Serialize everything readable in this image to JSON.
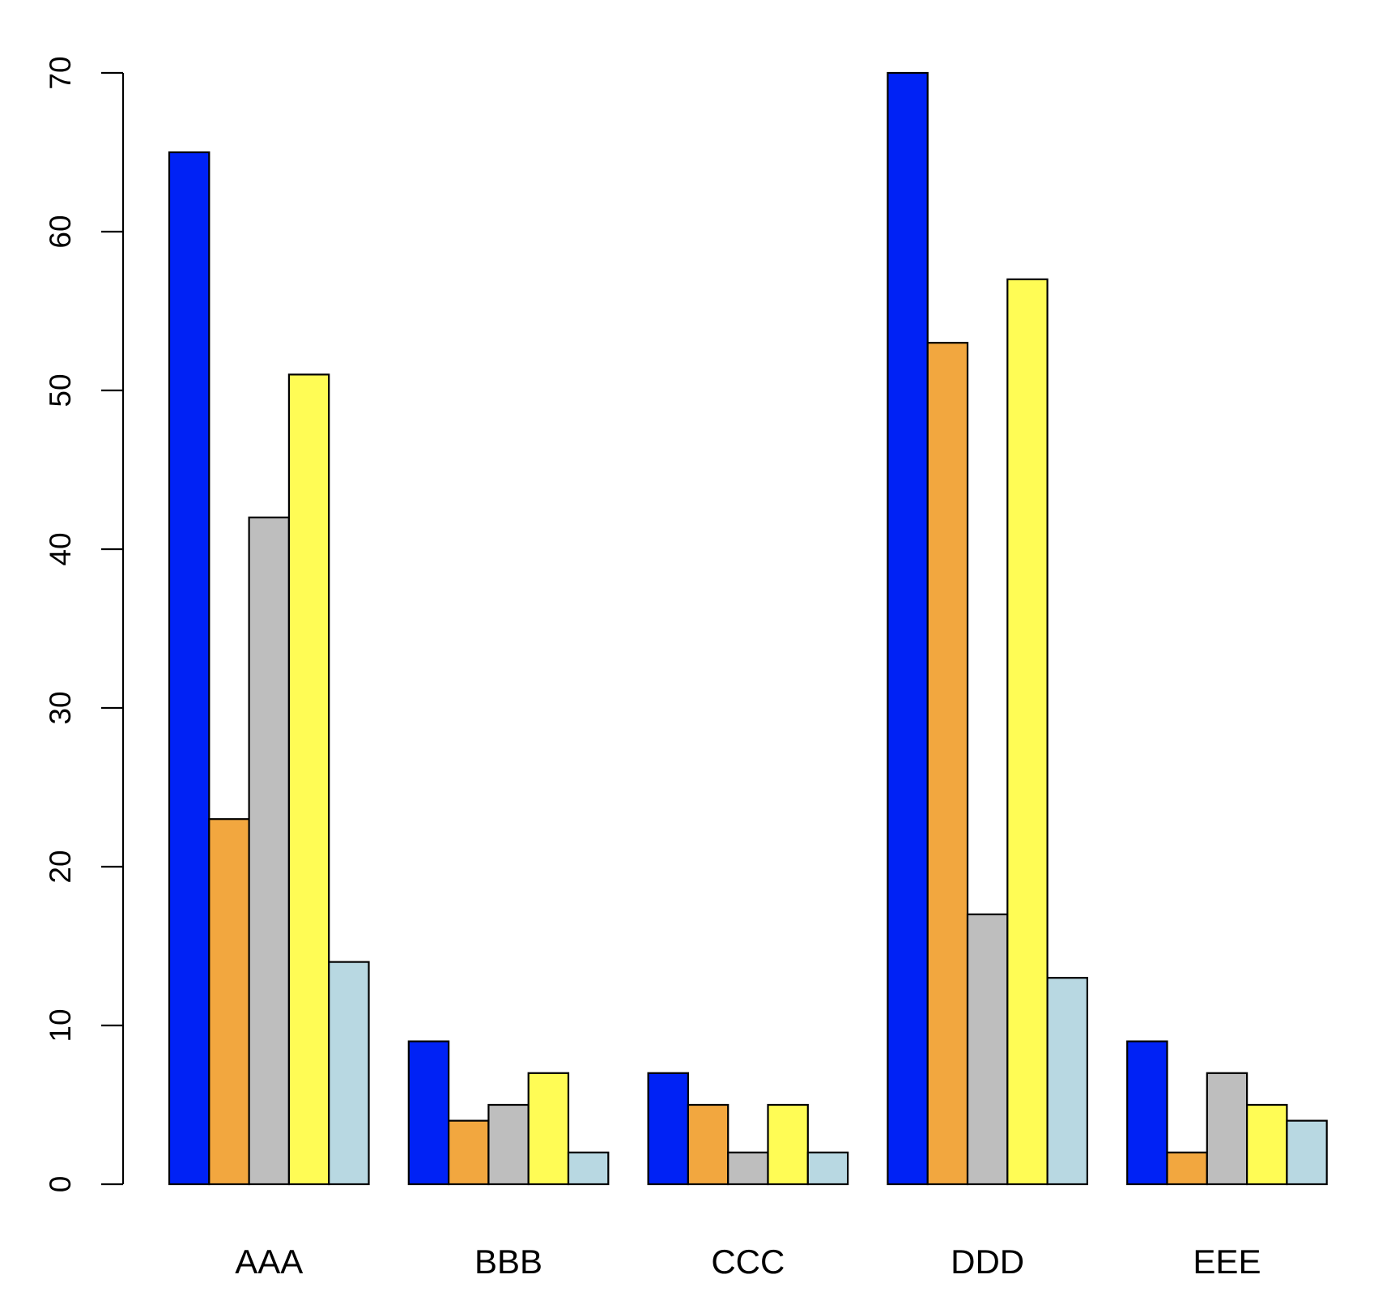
{
  "chart_data": {
    "type": "bar",
    "title": "",
    "xlabel": "",
    "ylabel": "",
    "categories": [
      "AAA",
      "BBB",
      "CCC",
      "DDD",
      "EEE"
    ],
    "series": [
      {
        "color": "#0022f5",
        "values": [
          65,
          9,
          7,
          70,
          9
        ]
      },
      {
        "color": "#f2a73f",
        "values": [
          23,
          4,
          5,
          53,
          2
        ]
      },
      {
        "color": "#bebebe",
        "values": [
          42,
          5,
          2,
          17,
          7
        ]
      },
      {
        "color": "#fffc55",
        "values": [
          51,
          7,
          5,
          57,
          5
        ]
      },
      {
        "color": "#b8d8e2",
        "values": [
          14,
          2,
          2,
          13,
          4
        ]
      }
    ],
    "ylim": [
      0,
      70
    ],
    "yticks": [
      0,
      10,
      20,
      30,
      40,
      50,
      60,
      70
    ],
    "ytick_labels": [
      "0",
      "10",
      "20",
      "30",
      "40",
      "50",
      "60",
      "70"
    ],
    "grid": false,
    "legend": false,
    "bar_border_color": "#000000"
  }
}
